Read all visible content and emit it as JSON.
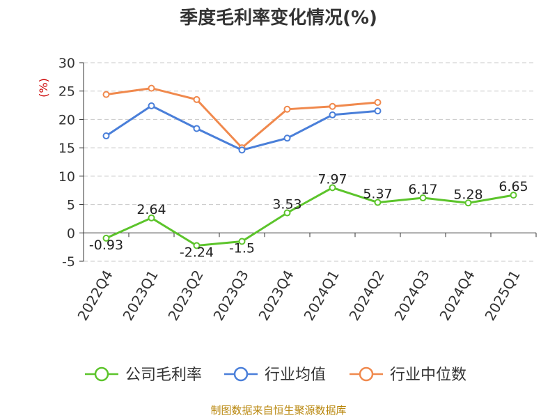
{
  "chart_data": {
    "type": "line",
    "title": "季度毛利率变化情况(%)",
    "ylabel": "(%)",
    "categories": [
      "2022Q4",
      "2023Q1",
      "2023Q2",
      "2023Q3",
      "2023Q4",
      "2024Q1",
      "2024Q2",
      "2024Q3",
      "2024Q4",
      "2025Q1"
    ],
    "ylim": [
      -5,
      30
    ],
    "yticks": [
      -5,
      0,
      5,
      10,
      15,
      20,
      25,
      30
    ],
    "grid": true,
    "legend_position": "bottom",
    "series": [
      {
        "name": "公司毛利率",
        "color": "#5cc42b",
        "values": [
          -0.93,
          2.64,
          -2.24,
          -1.5,
          3.53,
          7.97,
          5.37,
          6.17,
          5.28,
          6.65
        ],
        "labels": [
          "-0.93",
          "2.64",
          "-2.24",
          "-1.5",
          "3.53",
          "7.97",
          "5.37",
          "6.17",
          "5.28",
          "6.65"
        ]
      },
      {
        "name": "行业均值",
        "color": "#4a7fd9",
        "values": [
          17.1,
          22.4,
          18.4,
          14.6,
          16.7,
          20.8,
          21.5,
          null,
          null,
          null
        ]
      },
      {
        "name": "行业中位数",
        "color": "#f0894d",
        "values": [
          24.4,
          25.5,
          23.5,
          15.0,
          21.8,
          22.3,
          23.0,
          null,
          null,
          null
        ]
      }
    ],
    "source": "制图数据来自恒生聚源数据库"
  }
}
